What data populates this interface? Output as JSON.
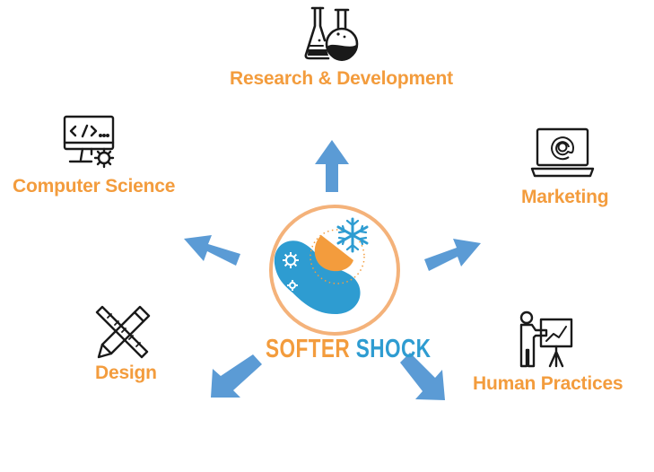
{
  "colors": {
    "accent_orange": "#F39C3D",
    "arrow_blue": "#5B9BD5",
    "logo_blue": "#2E9CD1",
    "icon_black": "#1a1a1a",
    "logo_ring": "#F4A15A"
  },
  "center": {
    "word1": "SOFTER",
    "word2": "SHOCK",
    "word1_color": "#F39C3D",
    "word2_color": "#2E9CD1"
  },
  "nodes": [
    {
      "id": "research",
      "label": "Research & Development",
      "icon": "flasks-icon"
    },
    {
      "id": "computer",
      "label": "Computer Science",
      "icon": "computer-code-icon"
    },
    {
      "id": "marketing",
      "label": "Marketing",
      "icon": "laptop-at-icon"
    },
    {
      "id": "design",
      "label": "Design",
      "icon": "pencil-ruler-icon"
    },
    {
      "id": "human",
      "label": "Human Practices",
      "icon": "presenter-board-icon"
    }
  ]
}
